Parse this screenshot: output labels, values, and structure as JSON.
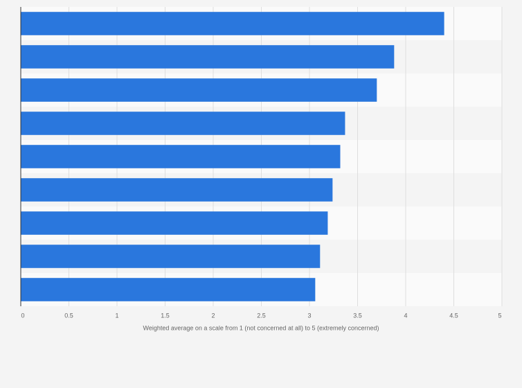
{
  "chart_data": {
    "type": "bar",
    "orientation": "horizontal",
    "x_label": "Weighted average on a scale from 1 (not concerned at all) to 5 (extremely concerned)",
    "categories": [
      null,
      null,
      null,
      null,
      null,
      null,
      null,
      null,
      null
    ],
    "values": [
      4.4,
      3.88,
      3.7,
      3.37,
      3.32,
      3.24,
      3.19,
      3.11,
      3.06
    ],
    "color": "#2a77dd",
    "xlim": [
      0,
      5
    ],
    "xticks": [
      0,
      0.5,
      1,
      1.5,
      2,
      2.5,
      3,
      3.5,
      4,
      4.5,
      5
    ],
    "grid": true
  }
}
